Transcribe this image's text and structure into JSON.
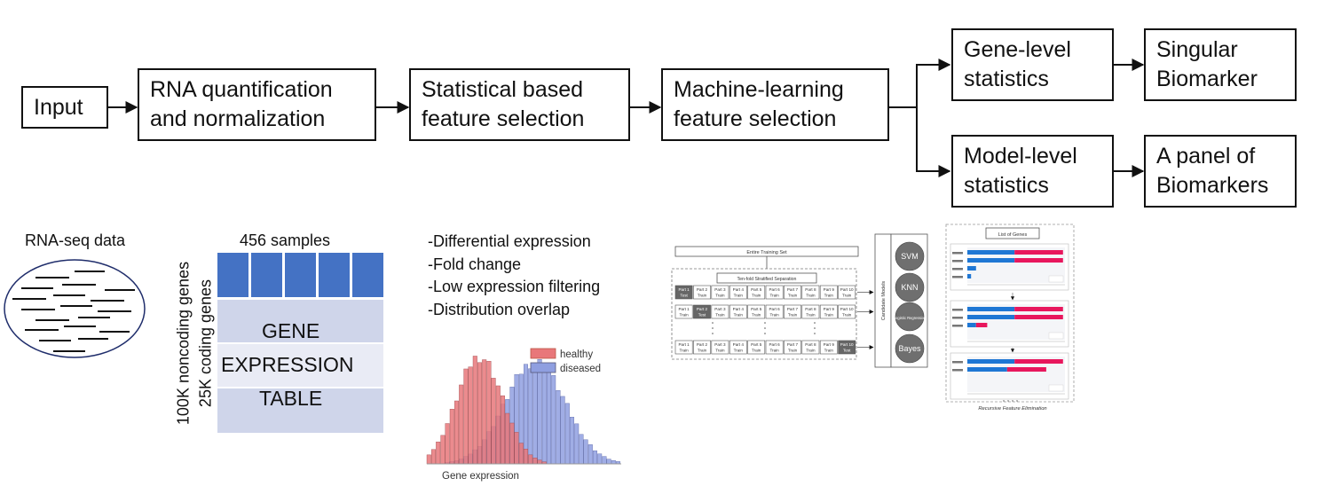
{
  "pipeline": {
    "input": "Input",
    "rna_quant": [
      "RNA quantification",
      "and normalization"
    ],
    "stat_fs": [
      "Statistical based",
      "feature selection"
    ],
    "ml_fs": [
      "Machine-learning",
      "feature selection"
    ],
    "gene_level": [
      "Gene-level",
      "statistics"
    ],
    "model_level": [
      "Model-level",
      "statistics"
    ],
    "singular": [
      "Singular",
      "Biomarker"
    ],
    "panel": [
      "A panel of",
      "Biomarkers"
    ]
  },
  "rnaseq": {
    "label": "RNA-seq data"
  },
  "table": {
    "samples_label": "456 samples",
    "row_label_1": "100K noncoding genes",
    "row_label_2": "25K coding genes",
    "center_text": [
      "GENE",
      "EXPRESSION",
      "TABLE"
    ],
    "header_color": "#4472c4",
    "body_color_1": "#cfd5ea",
    "body_color_2": "#e9ebf5"
  },
  "criteria": [
    "-Differential expression",
    "-Fold change",
    "-Low expression filtering",
    "-Distribution overlap"
  ],
  "histogram": {
    "legend": [
      "healthy",
      "diseased"
    ],
    "xlabel": "Gene expression",
    "healthy_color": "#e8777a",
    "diseased_color": "#8f9fe0"
  },
  "cv_figure": {
    "entire_training_set": "Entire Training Set",
    "stratified_label": "Ten-fold Stratified Separation",
    "part_labels": [
      "Part 1",
      "Part 2",
      "Part 3",
      "Part 4",
      "Part 5",
      "Part 6",
      "Part 7",
      "Part 8",
      "Part 9",
      "Part 10"
    ],
    "train_label": "Train",
    "test_label": "Test",
    "candidate_models_label": "Candidate Models",
    "models": [
      "SVM",
      "KNN",
      "Logistic Regression",
      "Bayes"
    ],
    "list_of_genes": "List of Genes",
    "rfe_label": "Recursive Feature Elimination",
    "class_colors": [
      "#1f77d4",
      "#e8175d"
    ]
  }
}
